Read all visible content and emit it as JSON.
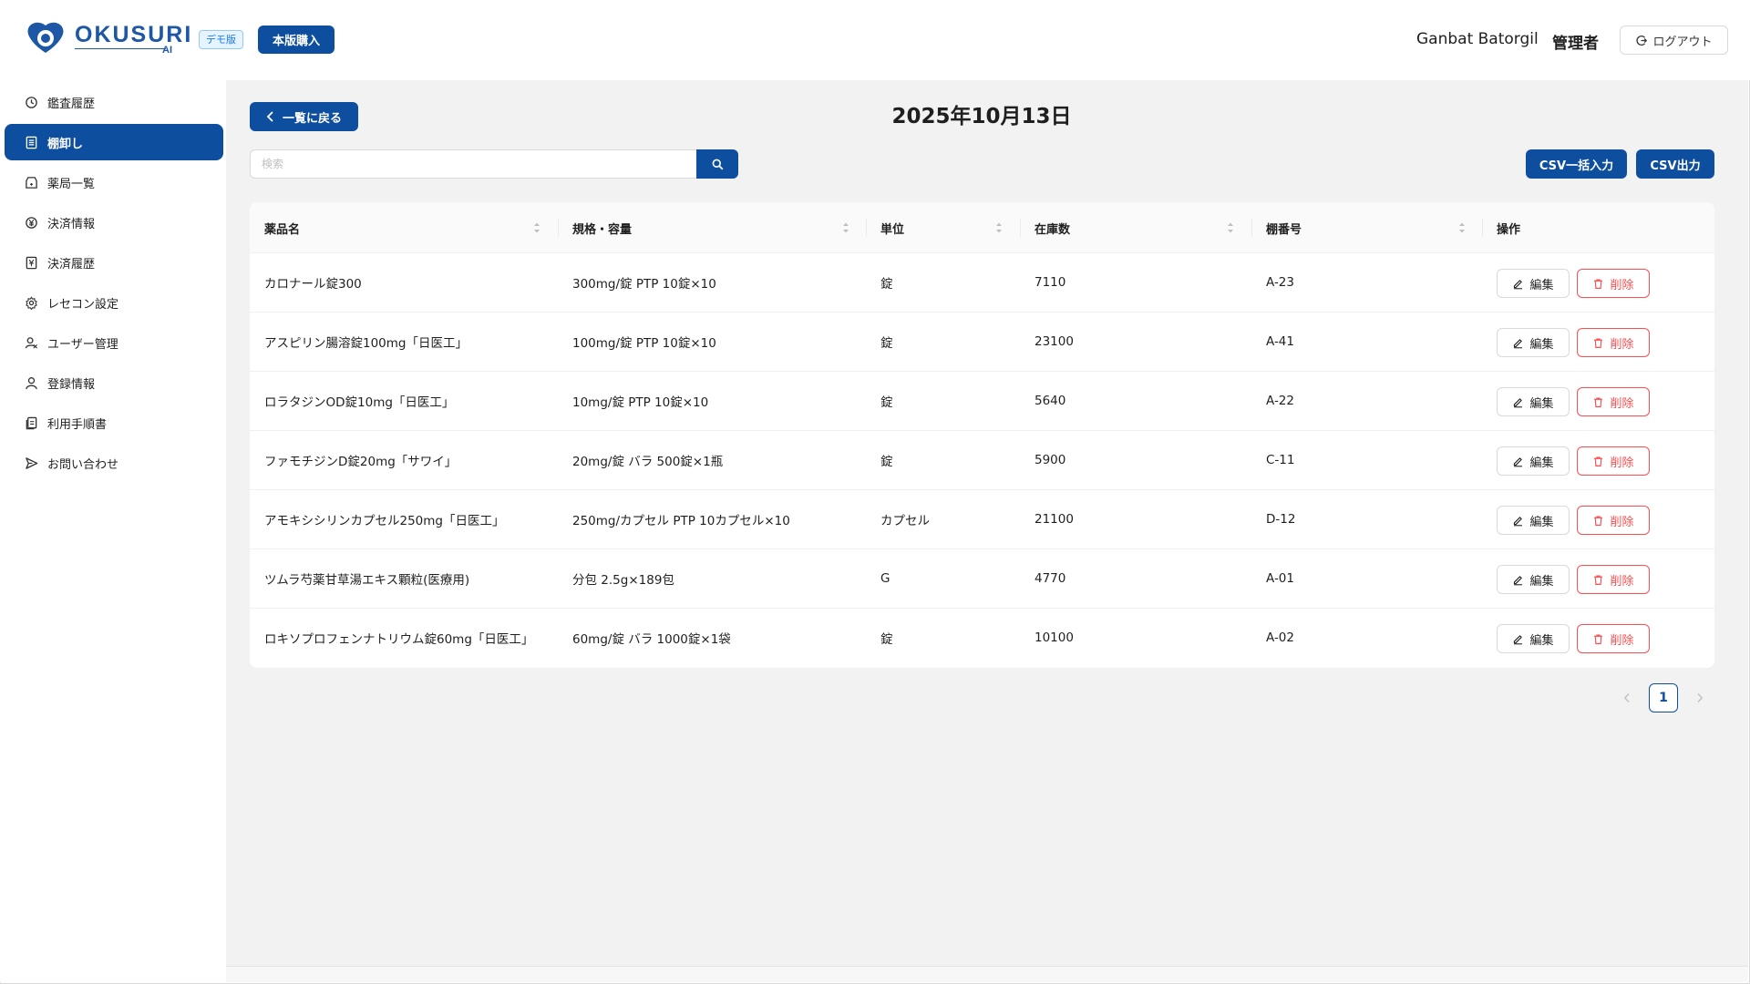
{
  "header": {
    "logo_text": "OKUSURI",
    "logo_sub": "AI",
    "demo_badge": "デモ版",
    "buy_button": "本版購入",
    "user_name": "Ganbat Batorgil",
    "user_role": "管理者",
    "logout_button": "ログアウト"
  },
  "sidebar": {
    "items": [
      {
        "label": "鑑査履歴",
        "icon": "history-icon"
      },
      {
        "label": "棚卸し",
        "icon": "list-icon",
        "active": true
      },
      {
        "label": "薬局一覧",
        "icon": "store-icon"
      },
      {
        "label": "決済情報",
        "icon": "payment-icon"
      },
      {
        "label": "決済履歴",
        "icon": "receipt-icon"
      },
      {
        "label": "レセコン設定",
        "icon": "gear-icon"
      },
      {
        "label": "ユーザー管理",
        "icon": "user-manage-icon"
      },
      {
        "label": "登録情報",
        "icon": "user-icon"
      },
      {
        "label": "利用手順書",
        "icon": "document-icon"
      },
      {
        "label": "お問い合わせ",
        "icon": "send-icon"
      }
    ]
  },
  "main": {
    "back_button": "一覧に戻る",
    "title": "2025年10月13日",
    "search_placeholder": "検索",
    "csv_import_button": "CSV一括入力",
    "csv_export_button": "CSV出力"
  },
  "table": {
    "columns": [
      "薬品名",
      "規格・容量",
      "単位",
      "在庫数",
      "棚番号",
      "操作"
    ],
    "edit_label": "編集",
    "delete_label": "削除",
    "rows": [
      {
        "name": "カロナール錠300",
        "spec": "300mg/錠 PTP 10錠×10",
        "unit": "錠",
        "stock": "7110",
        "shelf": "A-23"
      },
      {
        "name": "アスピリン腸溶錠100mg「日医工」",
        "spec": "100mg/錠 PTP 10錠×10",
        "unit": "錠",
        "stock": "23100",
        "shelf": "A-41"
      },
      {
        "name": "ロラタジンOD錠10mg「日医工」",
        "spec": "10mg/錠 PTP 10錠×10",
        "unit": "錠",
        "stock": "5640",
        "shelf": "A-22"
      },
      {
        "name": "ファモチジンD錠20mg「サワイ」",
        "spec": "20mg/錠 バラ 500錠×1瓶",
        "unit": "錠",
        "stock": "5900",
        "shelf": "C-11"
      },
      {
        "name": "アモキシシリンカプセル250mg「日医工」",
        "spec": "250mg/カプセル PTP 10カプセル×10",
        "unit": "カプセル",
        "stock": "21100",
        "shelf": "D-12"
      },
      {
        "name": "ツムラ芍薬甘草湯エキス顆粒(医療用)",
        "spec": "分包 2.5g×189包",
        "unit": "G",
        "stock": "4770",
        "shelf": "A-01"
      },
      {
        "name": "ロキソプロフェンナトリウム錠60mg「日医工」",
        "spec": "60mg/錠 バラ 1000錠×1袋",
        "unit": "錠",
        "stock": "10100",
        "shelf": "A-02"
      }
    ]
  },
  "pagination": {
    "current_page": "1",
    "prev": "‹",
    "next": "›"
  }
}
